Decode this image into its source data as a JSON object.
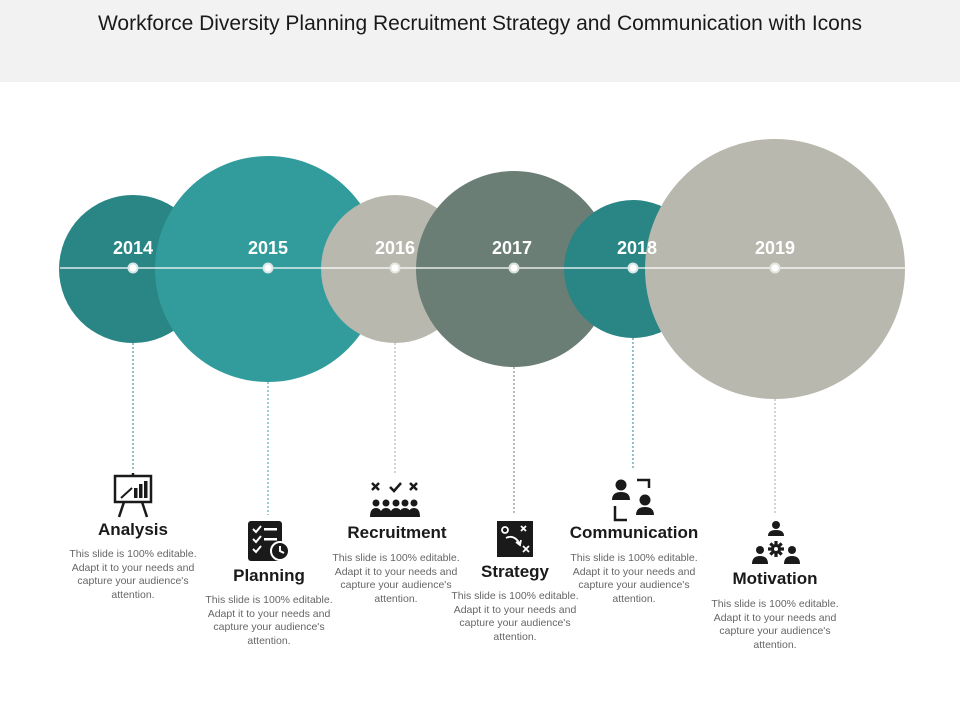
{
  "title": "Workforce Diversity Planning Recruitment Strategy and Communication with Icons",
  "colors": {
    "teal_dark": "#2a8585",
    "teal": "#329c9c",
    "gray_light": "#b8b8ae",
    "gray_green": "#6a7e76",
    "line": "#ffffff",
    "text_desc": "#666666"
  },
  "milestones": [
    {
      "year": "2014",
      "label": "Analysis",
      "description": "This slide is 100% editable. Adapt it to your needs and capture your audience's attention.",
      "icon": "presentation-chart-icon"
    },
    {
      "year": "2015",
      "label": "Planning",
      "description": "This slide is 100% editable. Adapt it to your needs and capture your audience's attention.",
      "icon": "checklist-clock-icon"
    },
    {
      "year": "2016",
      "label": "Recruitment",
      "description": "This slide is 100% editable. Adapt it to your needs and capture your audience's attention.",
      "icon": "candidates-selection-icon"
    },
    {
      "year": "2017",
      "label": "Strategy",
      "description": "This slide is 100% editable. Adapt it to your needs and capture your audience's attention.",
      "icon": "strategy-board-icon"
    },
    {
      "year": "2018",
      "label": "Communication",
      "description": "This slide is 100% editable. Adapt it to your needs and capture your audience's attention.",
      "icon": "people-talking-icon"
    },
    {
      "year": "2019",
      "label": "Motivation",
      "description": "This slide is 100% editable. Adapt it to your needs and capture your audience's attention.",
      "icon": "team-gear-icon"
    }
  ]
}
